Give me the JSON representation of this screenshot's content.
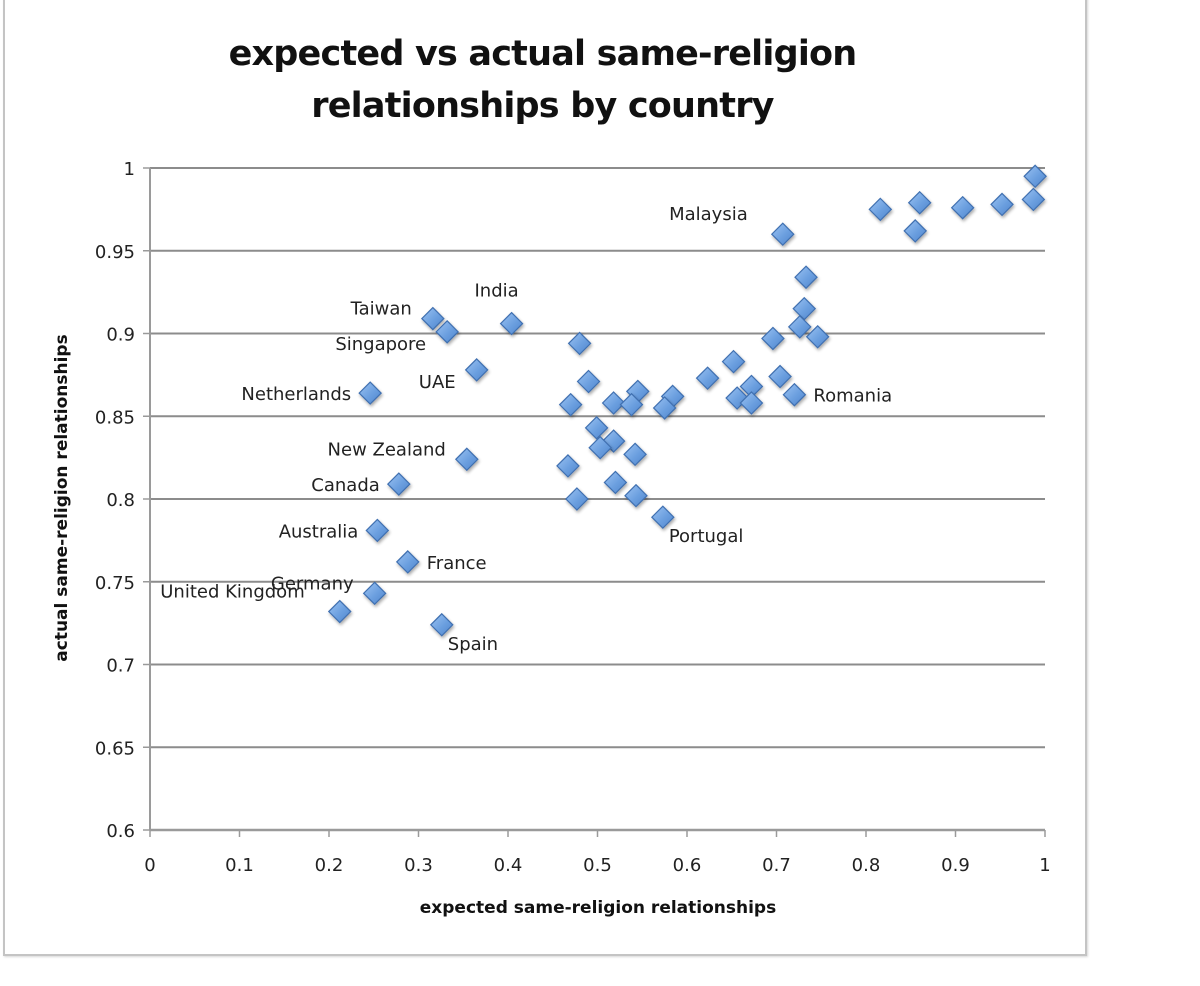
{
  "chart_data": {
    "type": "scatter",
    "title": "expected vs actual same-religion relationships by country",
    "title_lines": [
      "expected vs actual same-religion",
      "relationships by country"
    ],
    "xlabel": "expected same-religion relationships",
    "ylabel": "actual same-religion relationships",
    "xlim": [
      0,
      1
    ],
    "ylim": [
      0.6,
      1
    ],
    "x_ticks": [
      "0",
      "0.1",
      "0.2",
      "0.3",
      "0.4",
      "0.5",
      "0.6",
      "0.7",
      "0.8",
      "0.9",
      "1"
    ],
    "y_ticks": [
      "0.6",
      "0.65",
      "0.7",
      "0.75",
      "0.8",
      "0.85",
      "0.9",
      "0.95",
      "1"
    ],
    "grid": "horizontal",
    "legend": "none",
    "marker": "diamond",
    "marker_color": "#6b9fdf",
    "marker_edge_color": "#3f6fb0",
    "grid_color": "#8c8c8c",
    "points": [
      {
        "x": 0.316,
        "y": 0.909,
        "label": "Taiwan",
        "label_pos": "upper-left"
      },
      {
        "x": 0.332,
        "y": 0.901,
        "label": "Singapore",
        "label_pos": "lower-left"
      },
      {
        "x": 0.404,
        "y": 0.906,
        "label": "India",
        "label_pos": "above"
      },
      {
        "x": 0.365,
        "y": 0.878,
        "label": "UAE",
        "label_pos": "lower-left"
      },
      {
        "x": 0.246,
        "y": 0.864,
        "label": "Netherlands",
        "label_pos": "left"
      },
      {
        "x": 0.354,
        "y": 0.824,
        "label": "New Zealand",
        "label_pos": "upper-left"
      },
      {
        "x": 0.278,
        "y": 0.809,
        "label": "Canada",
        "label_pos": "left"
      },
      {
        "x": 0.254,
        "y": 0.781,
        "label": "Australia",
        "label_pos": "left"
      },
      {
        "x": 0.288,
        "y": 0.762,
        "label": "France",
        "label_pos": "right"
      },
      {
        "x": 0.251,
        "y": 0.743,
        "label": "Germany",
        "label_pos": "upper-left"
      },
      {
        "x": 0.212,
        "y": 0.732,
        "label": "United Kingdom",
        "label_pos": "upper-left-far"
      },
      {
        "x": 0.326,
        "y": 0.724,
        "label": "Spain",
        "label_pos": "lower-right"
      },
      {
        "x": 0.707,
        "y": 0.96,
        "label": "Malaysia",
        "label_pos": "upper-left-far"
      },
      {
        "x": 0.72,
        "y": 0.863,
        "label": "Romania",
        "label_pos": "right"
      },
      {
        "x": 0.573,
        "y": 0.789,
        "label": "Portugal",
        "label_pos": "lower-right"
      },
      {
        "x": 0.816,
        "y": 0.975
      },
      {
        "x": 0.86,
        "y": 0.979
      },
      {
        "x": 0.855,
        "y": 0.962
      },
      {
        "x": 0.908,
        "y": 0.976
      },
      {
        "x": 0.952,
        "y": 0.978
      },
      {
        "x": 0.989,
        "y": 0.995
      },
      {
        "x": 0.987,
        "y": 0.981
      },
      {
        "x": 0.733,
        "y": 0.934
      },
      {
        "x": 0.731,
        "y": 0.915
      },
      {
        "x": 0.726,
        "y": 0.904
      },
      {
        "x": 0.746,
        "y": 0.898
      },
      {
        "x": 0.696,
        "y": 0.897
      },
      {
        "x": 0.652,
        "y": 0.883
      },
      {
        "x": 0.623,
        "y": 0.873
      },
      {
        "x": 0.704,
        "y": 0.874
      },
      {
        "x": 0.672,
        "y": 0.868
      },
      {
        "x": 0.656,
        "y": 0.861
      },
      {
        "x": 0.672,
        "y": 0.858
      },
      {
        "x": 0.48,
        "y": 0.894
      },
      {
        "x": 0.49,
        "y": 0.871
      },
      {
        "x": 0.47,
        "y": 0.857
      },
      {
        "x": 0.518,
        "y": 0.858
      },
      {
        "x": 0.545,
        "y": 0.865
      },
      {
        "x": 0.538,
        "y": 0.857
      },
      {
        "x": 0.584,
        "y": 0.862
      },
      {
        "x": 0.575,
        "y": 0.855
      },
      {
        "x": 0.499,
        "y": 0.843
      },
      {
        "x": 0.518,
        "y": 0.835
      },
      {
        "x": 0.503,
        "y": 0.831
      },
      {
        "x": 0.542,
        "y": 0.827
      },
      {
        "x": 0.467,
        "y": 0.82
      },
      {
        "x": 0.52,
        "y": 0.81
      },
      {
        "x": 0.543,
        "y": 0.802
      },
      {
        "x": 0.477,
        "y": 0.8
      }
    ]
  }
}
